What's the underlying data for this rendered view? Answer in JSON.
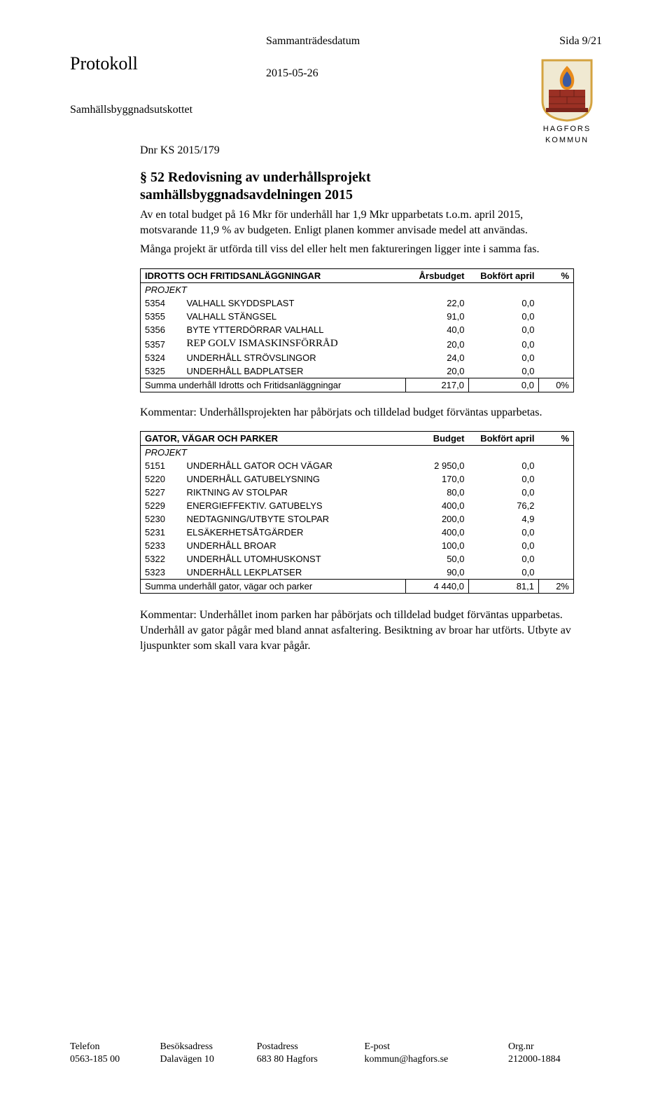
{
  "header": {
    "left_label": "Sammanträdesdatum",
    "right_label": "Sida 9/21",
    "protokoll": "Protokoll",
    "date": "2015-05-26",
    "subcommittee": "Samhällsbyggnadsutskottet",
    "logo_text_top": "HAGFORS",
    "logo_text_bottom": "KOMMUN"
  },
  "dnr": "Dnr KS 2015/179",
  "title_line1": "§ 52 Redovisning av underhållsprojekt",
  "title_line2": "samhällsbyggnadsavdelningen 2015",
  "para1": "Av en total budget på 16 Mkr för underhåll har 1,9 Mkr upparbetats t.o.m. april 2015, motsvarande 11,9 % av budgeten. Enligt planen kommer anvisade medel att användas.",
  "para2": "Många projekt är utförda till viss del eller helt men faktureringen ligger inte i samma fas.",
  "table1": {
    "header_label": "IDROTTS OCH FRITIDSANLÄGGNINGAR",
    "col_budget": "Årsbudget",
    "col_booked": "Bokfört april",
    "col_pct": "%",
    "sub": "PROJEKT",
    "rows": [
      {
        "code": "5354",
        "name": "VALHALL SKYDDSPLAST",
        "budget": "22,0",
        "booked": "0,0"
      },
      {
        "code": "5355",
        "name": "VALHALL STÄNGSEL",
        "budget": "91,0",
        "booked": "0,0"
      },
      {
        "code": "5356",
        "name": "BYTE YTTERDÖRRAR VALHALL",
        "budget": "40,0",
        "booked": "0,0"
      },
      {
        "code": "5357",
        "name": "REP GOLV ISMASKINSFÖRRÅD",
        "budget": "20,0",
        "booked": "0,0",
        "serif": true
      },
      {
        "code": "5324",
        "name": "UNDERHÅLL STRÖVSLINGOR",
        "budget": "24,0",
        "booked": "0,0"
      },
      {
        "code": "5325",
        "name": "UNDERHÅLL BADPLATSER",
        "budget": "20,0",
        "booked": "0,0"
      }
    ],
    "sum_label": "Summa underhåll Idrotts och Fritidsanläggningar",
    "sum_budget": "217,0",
    "sum_booked": "0,0",
    "sum_pct": "0%"
  },
  "comment1": "Kommentar: Underhållsprojekten har påbörjats och tilldelad budget förväntas upparbetas.",
  "table2": {
    "header_label": "GATOR, VÄGAR OCH PARKER",
    "col_budget": "Budget",
    "col_booked": "Bokfört april",
    "col_pct": "%",
    "sub": "PROJEKT",
    "rows": [
      {
        "code": "5151",
        "name": "UNDERHÅLL GATOR OCH VÄGAR",
        "budget": "2 950,0",
        "booked": "0,0"
      },
      {
        "code": "5220",
        "name": "UNDERHÅLL GATUBELYSNING",
        "budget": "170,0",
        "booked": "0,0"
      },
      {
        "code": "5227",
        "name": "RIKTNING AV STOLPAR",
        "budget": "80,0",
        "booked": "0,0"
      },
      {
        "code": "5229",
        "name": "ENERGIEFFEKTIV. GATUBELYS",
        "budget": "400,0",
        "booked": "76,2"
      },
      {
        "code": "5230",
        "name": "NEDTAGNING/UTBYTE STOLPAR",
        "budget": "200,0",
        "booked": "4,9"
      },
      {
        "code": "5231",
        "name": "ELSÄKERHETSÅTGÄRDER",
        "budget": "400,0",
        "booked": "0,0"
      },
      {
        "code": "5233",
        "name": "UNDERHÅLL BROAR",
        "budget": "100,0",
        "booked": "0,0"
      },
      {
        "code": "5322",
        "name": "UNDERHÅLL UTOMHUSKONST",
        "budget": "50,0",
        "booked": "0,0"
      },
      {
        "code": "5323",
        "name": "UNDERHÅLL LEKPLATSER",
        "budget": "90,0",
        "booked": "0,0"
      }
    ],
    "sum_label": "Summa underhåll gator, vägar och parker",
    "sum_budget": "4 440,0",
    "sum_booked": "81,1",
    "sum_pct": "2%"
  },
  "comment2": "Kommentar: Underhållet inom parken har påbörjats och tilldelad budget förväntas upparbetas. Underhåll av gator pågår med bland annat asfaltering. Besiktning av broar har utförts. Utbyte av ljuspunkter som skall vara kvar pågår.",
  "footer": {
    "h1": "Telefon",
    "h2": "Besöksadress",
    "h3": "Postadress",
    "h4": "E-post",
    "h5": "Org.nr",
    "v1": "0563-185 00",
    "v2": "Dalavägen 10",
    "v3": "683 80 Hagfors",
    "v4": "kommun@hagfors.se",
    "v5": "212000-1884"
  },
  "colors": {
    "text": "#000000",
    "background": "#ffffff",
    "border": "#000000",
    "logo_flame_outer": "#e88b1c",
    "logo_flame_inner": "#3b5aa3",
    "logo_brick": "#9b3024",
    "logo_border": "#d4a340"
  }
}
